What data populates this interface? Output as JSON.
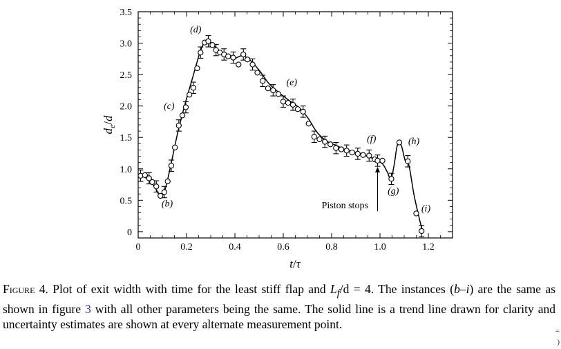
{
  "chart_data": {
    "type": "scatter",
    "xlabel": "t/τ",
    "ylabel": "d_e/d",
    "xlim": [
      0,
      1.3
    ],
    "ylim": [
      -0.1,
      3.5
    ],
    "xticks": [
      0,
      0.2,
      0.4,
      0.6,
      0.8,
      1.0,
      1.2
    ],
    "xtick_labels": [
      "0",
      "0.2",
      "0.4",
      "0.6",
      "0.8",
      "1.0",
      "1.2"
    ],
    "yticks": [
      0,
      0.5,
      1.0,
      1.5,
      2.0,
      2.5,
      3.0,
      3.5
    ],
    "ytick_labels": [
      "0",
      "0.5",
      "1.0",
      "1.5",
      "2.0",
      "2.5",
      "3.0",
      "3.5"
    ],
    "grid": false,
    "series": [
      {
        "marker": "open-circle",
        "x": [
          0.01,
          0.028,
          0.045,
          0.058,
          0.075,
          0.092,
          0.108,
          0.122,
          0.137,
          0.152,
          0.168,
          0.183,
          0.197,
          0.212,
          0.228,
          0.244,
          0.258,
          0.275,
          0.29,
          0.307,
          0.322,
          0.338,
          0.355,
          0.372,
          0.393,
          0.415,
          0.435,
          0.452,
          0.473,
          0.493,
          0.515,
          0.537,
          0.558,
          0.58,
          0.6,
          0.62,
          0.64,
          0.66,
          0.682,
          0.705,
          0.728,
          0.75,
          0.772,
          0.795,
          0.818,
          0.84,
          0.862,
          0.885,
          0.908,
          0.93,
          0.955,
          0.978,
          0.99,
          1.01,
          1.047,
          1.08,
          1.115,
          1.15,
          1.172
        ],
        "y": [
          0.89,
          0.9,
          0.85,
          0.79,
          0.72,
          0.57,
          0.63,
          0.8,
          1.05,
          1.34,
          1.69,
          1.85,
          1.98,
          2.18,
          2.29,
          2.6,
          2.85,
          3.01,
          3.03,
          2.97,
          2.89,
          2.85,
          2.82,
          2.79,
          2.77,
          2.66,
          2.82,
          2.74,
          2.66,
          2.53,
          2.4,
          2.28,
          2.25,
          2.19,
          2.07,
          2.05,
          2.02,
          1.95,
          1.91,
          1.72,
          1.51,
          1.47,
          1.43,
          1.39,
          1.33,
          1.31,
          1.29,
          1.26,
          1.24,
          1.22,
          1.21,
          1.15,
          1.13,
          1.13,
          0.84,
          1.42,
          1.12,
          0.29,
          0.01
        ],
        "error_bars_at_index": [
          0,
          2,
          4,
          6,
          8,
          10,
          12,
          14,
          16,
          18,
          20,
          22,
          24,
          26,
          28,
          30,
          32,
          34,
          36,
          38,
          40,
          42,
          44,
          46,
          48,
          50,
          52,
          54,
          56,
          58
        ],
        "error_bar_halfwidth": 0.09
      },
      {
        "kind": "trend-line",
        "x": [
          0.0,
          0.02,
          0.045,
          0.07,
          0.09,
          0.105,
          0.12,
          0.14,
          0.165,
          0.195,
          0.225,
          0.255,
          0.275,
          0.29,
          0.31,
          0.33,
          0.355,
          0.38,
          0.4,
          0.43,
          0.46,
          0.5,
          0.54,
          0.58,
          0.62,
          0.66,
          0.7,
          0.74,
          0.78,
          0.82,
          0.86,
          0.9,
          0.94,
          0.98,
          1.01,
          1.03,
          1.045,
          1.058,
          1.07,
          1.08,
          1.09,
          1.105,
          1.12,
          1.14,
          1.16,
          1.175
        ],
        "y": [
          0.9,
          0.88,
          0.82,
          0.7,
          0.57,
          0.6,
          0.8,
          1.15,
          1.6,
          2.05,
          2.45,
          2.85,
          3.02,
          3.05,
          2.97,
          2.9,
          2.84,
          2.8,
          2.76,
          2.8,
          2.74,
          2.57,
          2.36,
          2.22,
          2.1,
          1.99,
          1.82,
          1.58,
          1.44,
          1.37,
          1.3,
          1.26,
          1.21,
          1.15,
          1.08,
          0.95,
          0.84,
          1.05,
          1.35,
          1.42,
          1.35,
          1.12,
          1.05,
          0.6,
          0.25,
          0.02
        ]
      }
    ],
    "annotations": [
      {
        "text": "(b)",
        "x": 0.12,
        "y": 0.4
      },
      {
        "text": "(c)",
        "x": 0.128,
        "y": 1.95
      },
      {
        "text": "(d)",
        "x": 0.238,
        "y": 3.17
      },
      {
        "text": "(e)",
        "x": 0.635,
        "y": 2.33
      },
      {
        "text": "(f)",
        "x": 0.965,
        "y": 1.43
      },
      {
        "text": "(g)",
        "x": 1.055,
        "y": 0.6
      },
      {
        "text": "(h)",
        "x": 1.14,
        "y": 1.39
      },
      {
        "text": "(i)",
        "x": 1.19,
        "y": 0.32
      },
      {
        "text": "Piston stops",
        "x": 0.855,
        "y": 0.37,
        "arrow_to": {
          "x": 0.99,
          "y": 1.03
        }
      }
    ]
  },
  "caption": {
    "prefix": "Figure 4.",
    "text_1": " Plot of exit width with time for the least stiff flap and ",
    "math": "L",
    "math_sub": "f",
    "math_tail": "/d = 4",
    "text_2": ". The instances (",
    "range": "b–i",
    "text_3": ") are the same as shown in figure ",
    "fig_ref": "3",
    "text_4": " with all other parameters being the same. The solid line is a trend line drawn for clarity and uncertainty estimates are shown at every alternate measurement point."
  }
}
